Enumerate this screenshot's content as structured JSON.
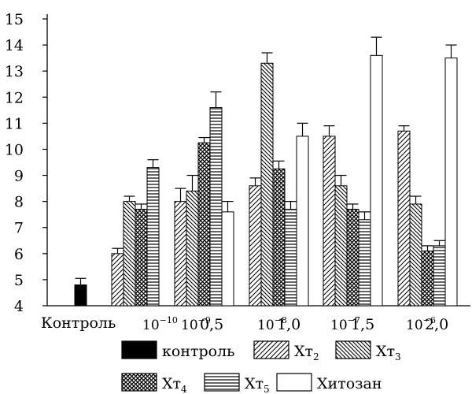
{
  "chart_data": {
    "type": "bar",
    "title": "",
    "xlabel": "",
    "ylabel": "",
    "ylim": [
      4,
      15
    ],
    "yticks": [
      "4",
      "5",
      "6",
      "7",
      "8",
      "9",
      "10",
      "11",
      "12",
      "13",
      "14",
      "15"
    ],
    "grid": false,
    "legend_position": "bottom",
    "series": [
      {
        "name": "контроль",
        "pattern": "solid",
        "color": "#000000"
      },
      {
        "name": "Хт",
        "sub": "2",
        "pattern": "hatch-forward",
        "color": "#000000"
      },
      {
        "name": "Хт",
        "sub": "3",
        "pattern": "hatch-backward",
        "color": "#000000"
      },
      {
        "name": "Хт",
        "sub": "4",
        "pattern": "crosshatch",
        "color": "#000000"
      },
      {
        "name": "Хт",
        "sub": "5",
        "pattern": "horizontal-lines",
        "color": "#000000"
      },
      {
        "name": "Хитозан",
        "pattern": "empty",
        "color": "#ffffff"
      }
    ],
    "groups": [
      {
        "label": "Контроль",
        "bars": [
          {
            "series": 0,
            "value": 4.8,
            "error": 0.25
          }
        ]
      },
      {
        "label_a": {
          "base": "10",
          "exp": "−10"
        },
        "label_b": {
          "base": "",
          "exp": ""
        },
        "bars": [
          {
            "series": 1,
            "value": 6.0,
            "error": 0.2
          },
          {
            "series": 2,
            "value": 8.0,
            "error": 0.2
          },
          {
            "series": 3,
            "value": 7.7,
            "error": 0.2
          },
          {
            "series": 4,
            "value": 9.3,
            "error": 0.3
          }
        ]
      },
      {
        "label_a": {
          "base": "10",
          "exp": "−9"
        },
        "label_b": {
          "base": "0,5",
          "exp": ""
        },
        "bars": [
          {
            "series": 1,
            "value": 8.0,
            "error": 0.5
          },
          {
            "series": 2,
            "value": 8.4,
            "error": 0.6
          },
          {
            "series": 3,
            "value": 10.25,
            "error": 0.2
          },
          {
            "series": 4,
            "value": 11.6,
            "error": 0.6
          },
          {
            "series": 5,
            "value": 7.6,
            "error": 0.4
          }
        ]
      },
      {
        "label_a": {
          "base": "10",
          "exp": "−8"
        },
        "label_b": {
          "base": "1,0",
          "exp": ""
        },
        "bars": [
          {
            "series": 1,
            "value": 8.6,
            "error": 0.3
          },
          {
            "series": 2,
            "value": 13.3,
            "error": 0.4
          },
          {
            "series": 3,
            "value": 9.25,
            "error": 0.3
          },
          {
            "series": 4,
            "value": 7.7,
            "error": 0.3
          },
          {
            "series": 5,
            "value": 10.5,
            "error": 0.5
          }
        ]
      },
      {
        "label_a": {
          "base": "10",
          "exp": "−7"
        },
        "label_b": {
          "base": "1,5",
          "exp": ""
        },
        "bars": [
          {
            "series": 1,
            "value": 10.5,
            "error": 0.4
          },
          {
            "series": 2,
            "value": 8.6,
            "error": 0.4
          },
          {
            "series": 3,
            "value": 7.7,
            "error": 0.2
          },
          {
            "series": 4,
            "value": 7.3,
            "error": 0.3
          },
          {
            "series": 5,
            "value": 13.6,
            "error": 0.7
          }
        ]
      },
      {
        "label_a": {
          "base": "10",
          "exp": "−6"
        },
        "label_b": {
          "base": "2,0",
          "exp": ""
        },
        "bars": [
          {
            "series": 1,
            "value": 10.7,
            "error": 0.2
          },
          {
            "series": 2,
            "value": 7.9,
            "error": 0.3
          },
          {
            "series": 3,
            "value": 6.1,
            "error": 0.2
          },
          {
            "series": 4,
            "value": 6.3,
            "error": 0.2
          },
          {
            "series": 5,
            "value": 13.5,
            "error": 0.5
          }
        ]
      }
    ]
  }
}
